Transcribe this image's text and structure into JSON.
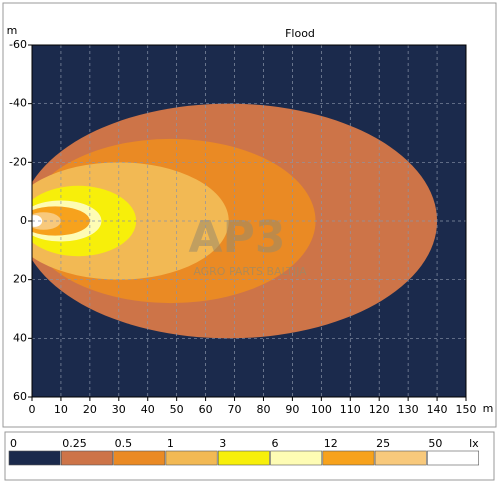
{
  "chart_data": {
    "type": "isolux",
    "title": "Flood",
    "x_unit": "m",
    "y_unit": "m",
    "watermark": "AP3",
    "watermark_sub": "AGRO PARTS BALTIJA",
    "xlim": [
      0,
      150
    ],
    "ylim": [
      -60,
      60
    ],
    "xticks": [
      0,
      10,
      20,
      30,
      40,
      50,
      60,
      70,
      80,
      90,
      100,
      110,
      120,
      130,
      140,
      150
    ],
    "yticks": [
      -60,
      -40,
      -20,
      0,
      20,
      40,
      60
    ],
    "grid": true,
    "legend": {
      "unit": "lx",
      "levels": [
        0,
        0.25,
        0.5,
        1,
        3,
        6,
        12,
        25,
        50
      ],
      "colors": [
        "#1b2a4c",
        "#cd7448",
        "#ea8a24",
        "#f2b954",
        "#f7ef0a",
        "#fefcb4",
        "#f7a21c",
        "#f8c97c",
        "#ffffff"
      ]
    },
    "contours": [
      {
        "x_max": 140,
        "x_peak": 68,
        "half_width": 40
      },
      {
        "x_max": 98,
        "x_peak": 48,
        "half_width": 28
      },
      {
        "x_max": 68,
        "x_peak": 30,
        "half_width": 20
      },
      {
        "x_max": 36,
        "x_peak": 16,
        "half_width": 12
      },
      {
        "x_max": 24,
        "x_peak": 10,
        "half_width": 7
      },
      {
        "x_max": 20,
        "x_peak": 8,
        "half_width": 5
      },
      {
        "x_max": 10,
        "x_peak": 4,
        "half_width": 3
      },
      {
        "x_max": 3.5,
        "x_peak": 1,
        "half_width": 2
      }
    ]
  }
}
